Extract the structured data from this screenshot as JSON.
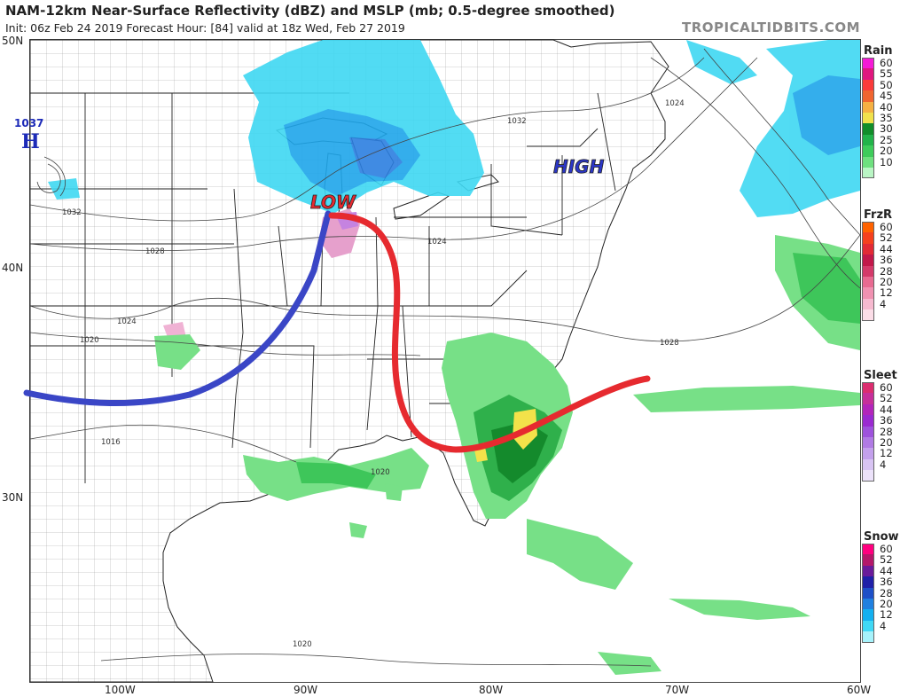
{
  "header": {
    "title": "NAM-12km Near-Surface Reflectivity (dBZ) and MSLP (mb; 0.5-degree smoothed)",
    "subtitle": "Init: 06z Feb 24 2019   Forecast Hour: [84]   valid at 18z Wed, Feb 27 2019",
    "site": "TROPICALTIDBITS.COM"
  },
  "axes": {
    "lat_labels": [
      {
        "text": "50N"
      },
      {
        "text": "40N"
      },
      {
        "text": "30N"
      }
    ],
    "lon_labels": [
      {
        "text": "100W"
      },
      {
        "text": "90W"
      },
      {
        "text": "80W"
      },
      {
        "text": "70W"
      },
      {
        "text": "60W"
      }
    ]
  },
  "annotations": {
    "high_west_value": "1037",
    "high_west_letter": "H",
    "low_label": "LOW",
    "high_label": "HIGH"
  },
  "isobar_labels": [
    "1032",
    "1028",
    "1024",
    "1020",
    "1016",
    "1020",
    "1024",
    "1028",
    "1032",
    "1024",
    "1020"
  ],
  "legend": {
    "rain": {
      "title": "Rain",
      "values": [
        "60",
        "55",
        "50",
        "45",
        "40",
        "35",
        "30",
        "25",
        "20",
        "10"
      ],
      "colors": [
        "#f51ad6",
        "#e0167f",
        "#fa3b3b",
        "#f06530",
        "#f5b043",
        "#f0e14c",
        "#118d2a",
        "#22b34a",
        "#3ecc5b",
        "#6ee07f",
        "#b9f5c4"
      ]
    },
    "frzr": {
      "title": "FrzR",
      "values": [
        "60",
        "52",
        "44",
        "36",
        "28",
        "20",
        "12",
        "4"
      ],
      "colors": [
        "#ff6200",
        "#f5401e",
        "#e22a35",
        "#c2184a",
        "#d43a6a",
        "#e86a91",
        "#f091b1",
        "#f6b9cf",
        "#fbdde7"
      ]
    },
    "sleet": {
      "title": "Sleet",
      "values": [
        "60",
        "52",
        "44",
        "36",
        "28",
        "20",
        "12",
        "4"
      ],
      "colors": [
        "#db2d6f",
        "#c62f9a",
        "#b225ba",
        "#9a2ad0",
        "#9e52dc",
        "#b07ae4",
        "#c3a0ec",
        "#d8c4f3",
        "#ece2fa"
      ]
    },
    "snow": {
      "title": "Snow",
      "values": [
        "60",
        "52",
        "44",
        "36",
        "28",
        "20",
        "12",
        "4"
      ],
      "colors": [
        "#ff007f",
        "#b4186a",
        "#6a1b9a",
        "#2020a8",
        "#1e50c8",
        "#2080e0",
        "#14b0f0",
        "#40d8f5",
        "#a6f2fb"
      ]
    }
  }
}
